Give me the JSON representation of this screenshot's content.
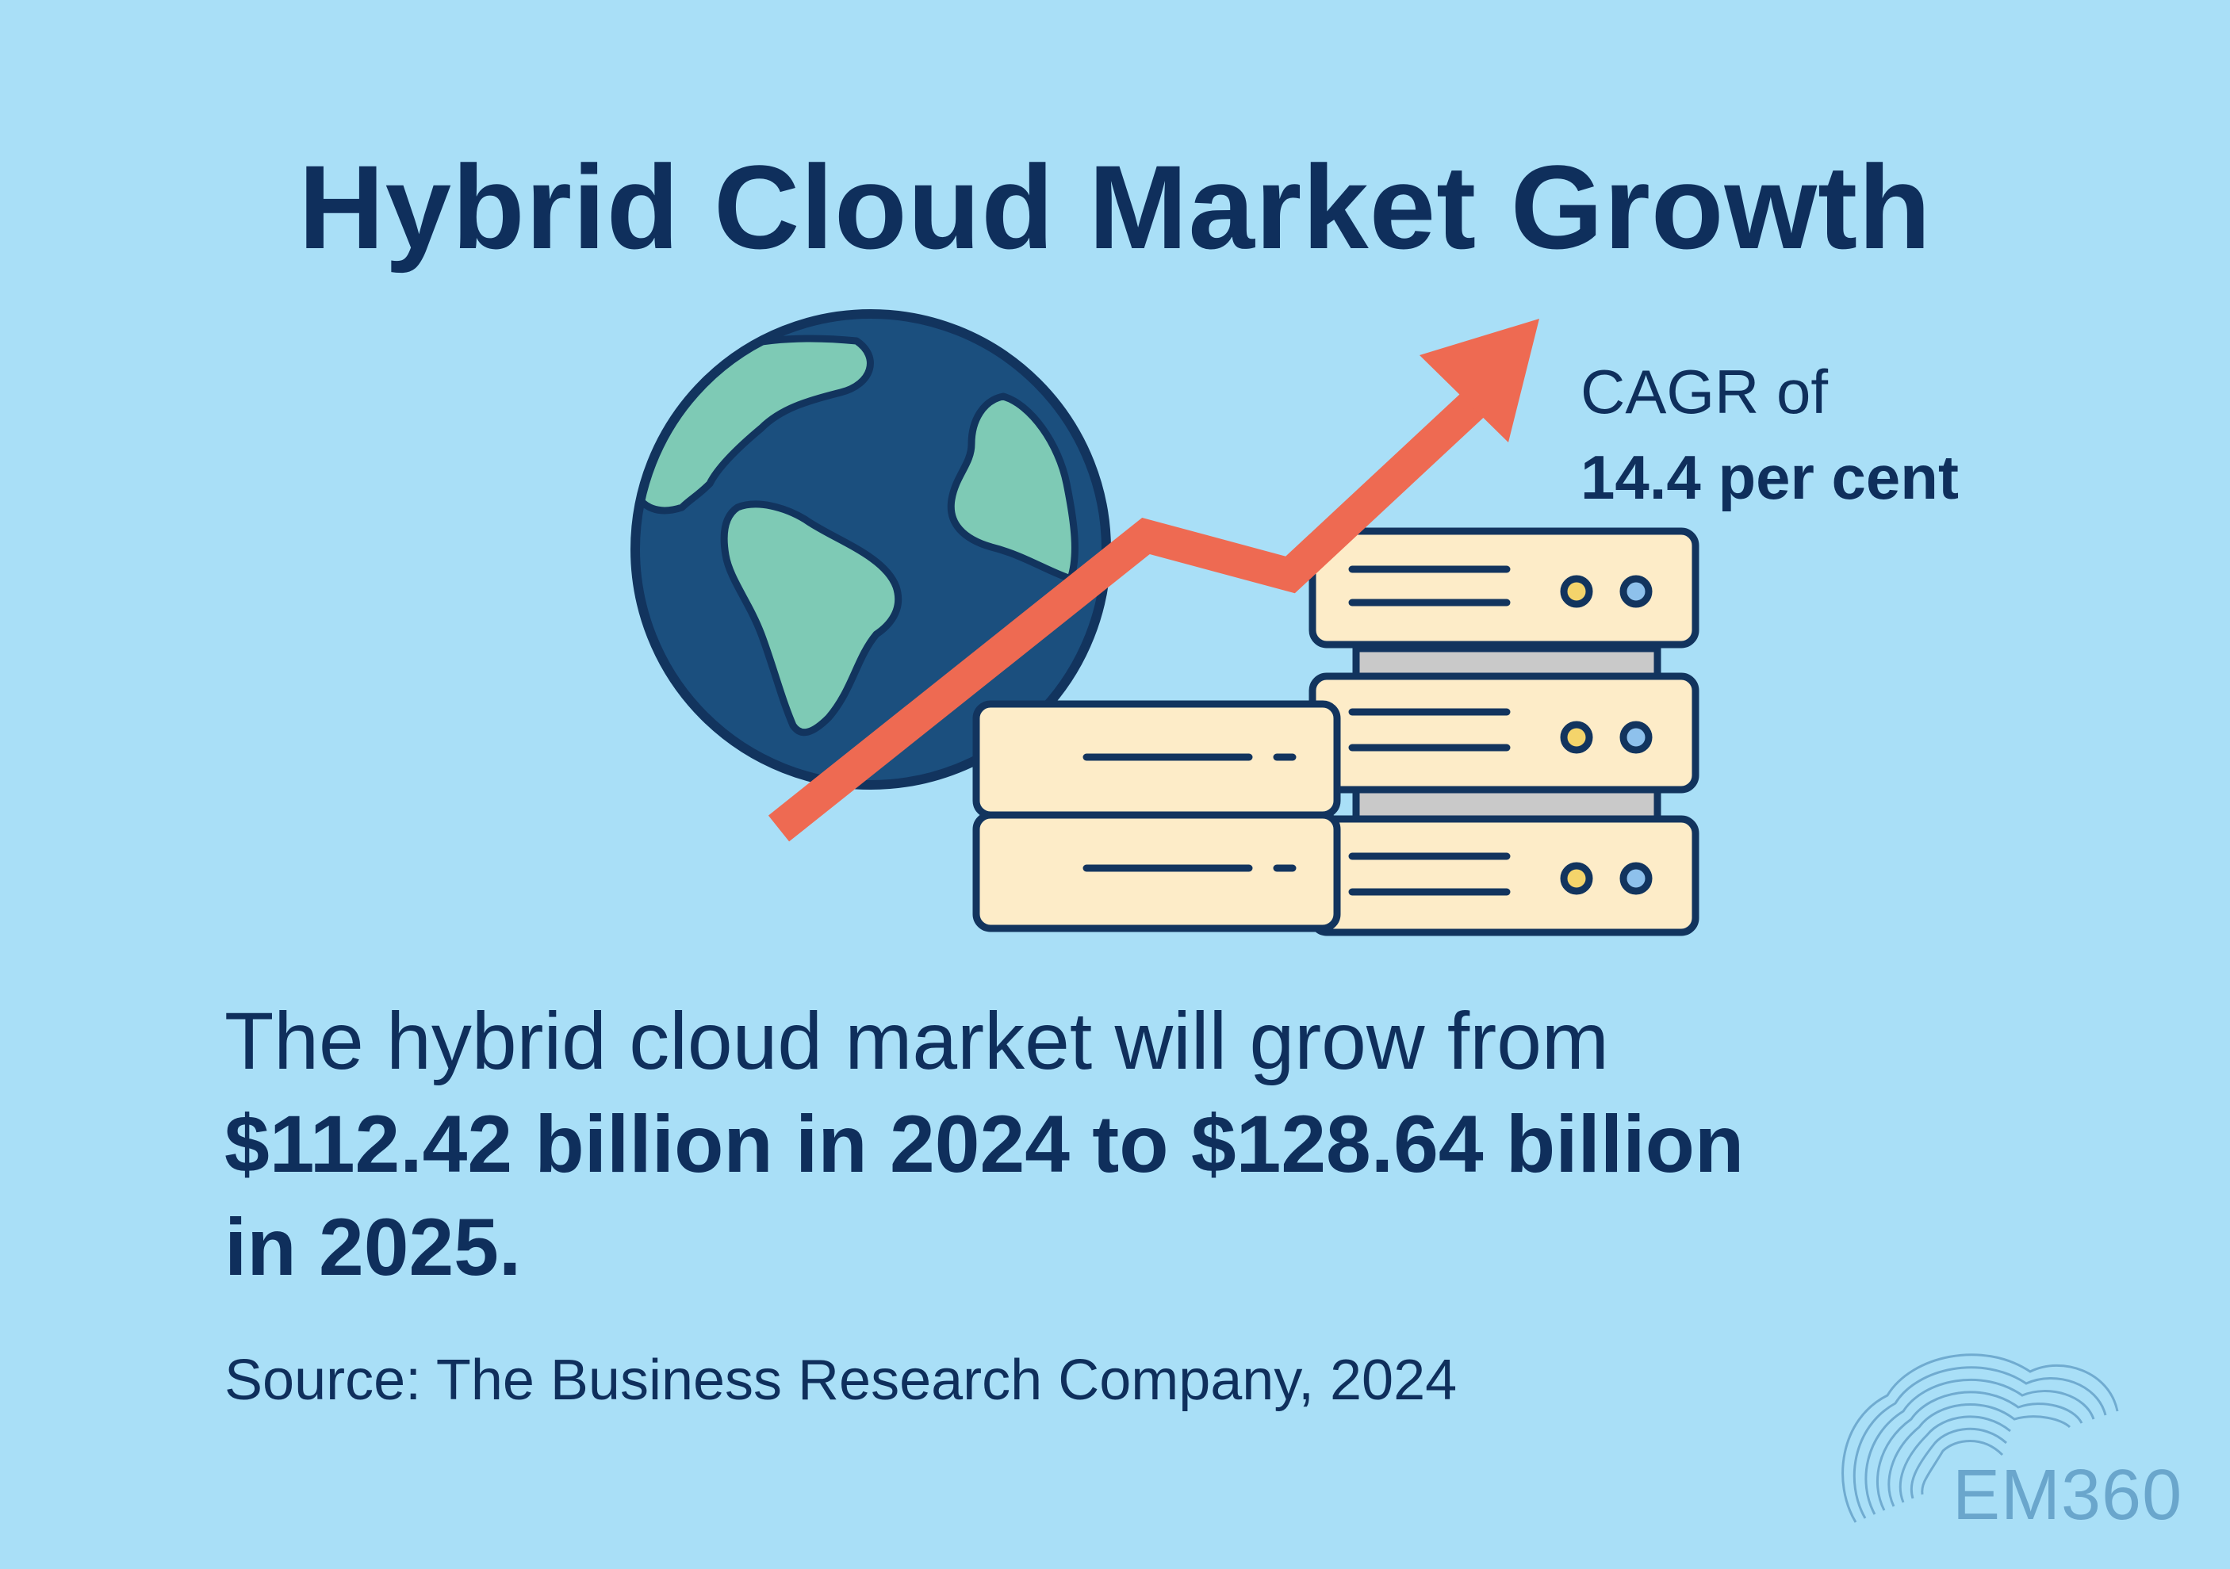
{
  "title": "Hybrid Cloud Market Growth",
  "cagr": {
    "line1": "CAGR of",
    "line2": "14.4 per cent"
  },
  "statement": {
    "lead": "The hybrid cloud market will grow from",
    "numbers": "$112.42 billion in 2024 to $128.64 billion",
    "tail": "in 2025."
  },
  "source": "Source: The Business Research Company, 2024",
  "brand": {
    "name": "EM360"
  },
  "icons": [
    "globe-icon",
    "growth-arrow-icon",
    "server-stack-icon",
    "em360-logo-icon"
  ],
  "colors": {
    "background": "#a9dff7",
    "text": "#0f2f5c",
    "globe_ocean": "#1b4f7e",
    "globe_land": "#7ecab5",
    "arrow": "#ee6a52",
    "server_body": "#fdecc8",
    "server_outline": "#12345e",
    "led_yellow": "#f4d46b",
    "led_blue": "#8ec1ec",
    "brand": "#6aa6cc"
  }
}
